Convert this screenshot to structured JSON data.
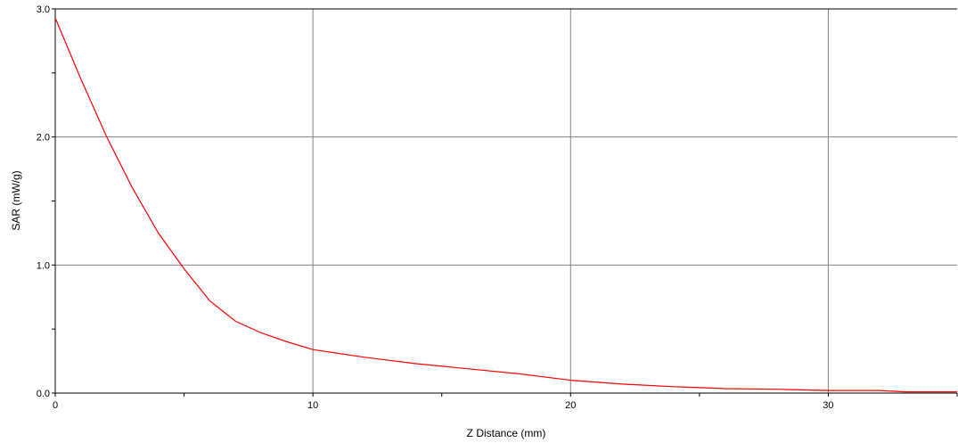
{
  "chart_data": {
    "type": "line",
    "title": "",
    "xlabel": "Z Distance (mm)",
    "ylabel": "SAR (mW/g)",
    "xlim": [
      0,
      35
    ],
    "ylim": [
      0,
      3.0
    ],
    "x_ticks": [
      0,
      10,
      20,
      30
    ],
    "x_tick_labels": [
      "0",
      "10",
      "20",
      "30"
    ],
    "y_ticks": [
      0,
      1,
      2,
      3
    ],
    "y_tick_labels": [
      "0.0",
      "1.0",
      "2.0",
      "3.0"
    ],
    "x_minor_step": 5,
    "y_minor_step": 0.5,
    "grid": true,
    "legend": "none",
    "colors": {
      "series": "#ff0000",
      "grid": "#808080",
      "axis": "#000000"
    },
    "series": [
      {
        "x": [
          0,
          1,
          2,
          3,
          4,
          5,
          6,
          7,
          8,
          9,
          10,
          12,
          14,
          16,
          18,
          20,
          22,
          24,
          26,
          28,
          30,
          32,
          33,
          35
        ],
        "y": [
          2.93,
          2.45,
          2.0,
          1.6,
          1.25,
          0.97,
          0.72,
          0.56,
          0.47,
          0.4,
          0.34,
          0.28,
          0.23,
          0.19,
          0.15,
          0.1,
          0.07,
          0.05,
          0.035,
          0.03,
          0.02,
          0.02,
          0.01,
          0.01
        ]
      }
    ]
  }
}
